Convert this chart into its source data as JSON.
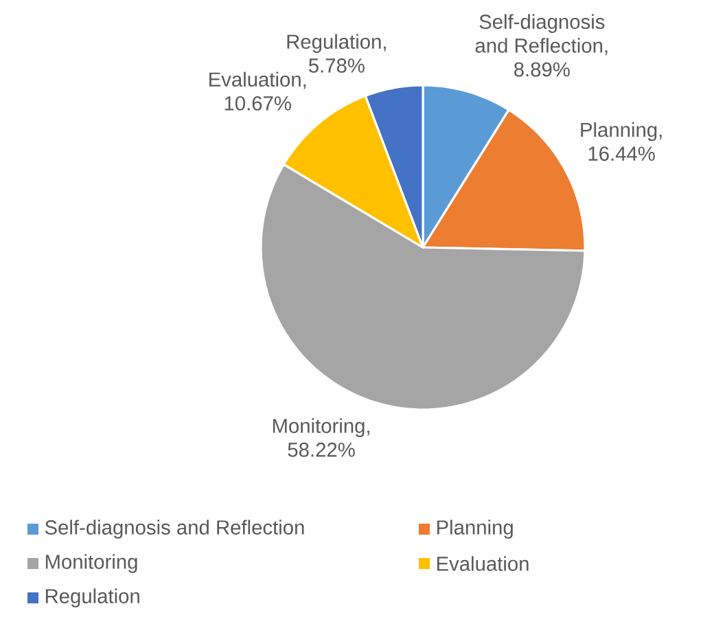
{
  "chart_data": {
    "type": "pie",
    "categories": [
      "Self-diagnosis and Reflection",
      "Planning",
      "Monitoring",
      "Evaluation",
      "Regulation"
    ],
    "values": [
      8.89,
      16.44,
      58.22,
      10.67,
      5.78
    ],
    "colors": [
      "#5b9bd5",
      "#ed7d31",
      "#a5a5a5",
      "#ffc000",
      "#4472c4"
    ],
    "value_labels": [
      "Self-diagnosis and Reflection, 8.89%",
      "Planning, 16.44%",
      "Monitoring, 58.22%",
      "Evaluation, 10.67%",
      "Regulation, 5.78%"
    ],
    "legend": "bottom"
  }
}
